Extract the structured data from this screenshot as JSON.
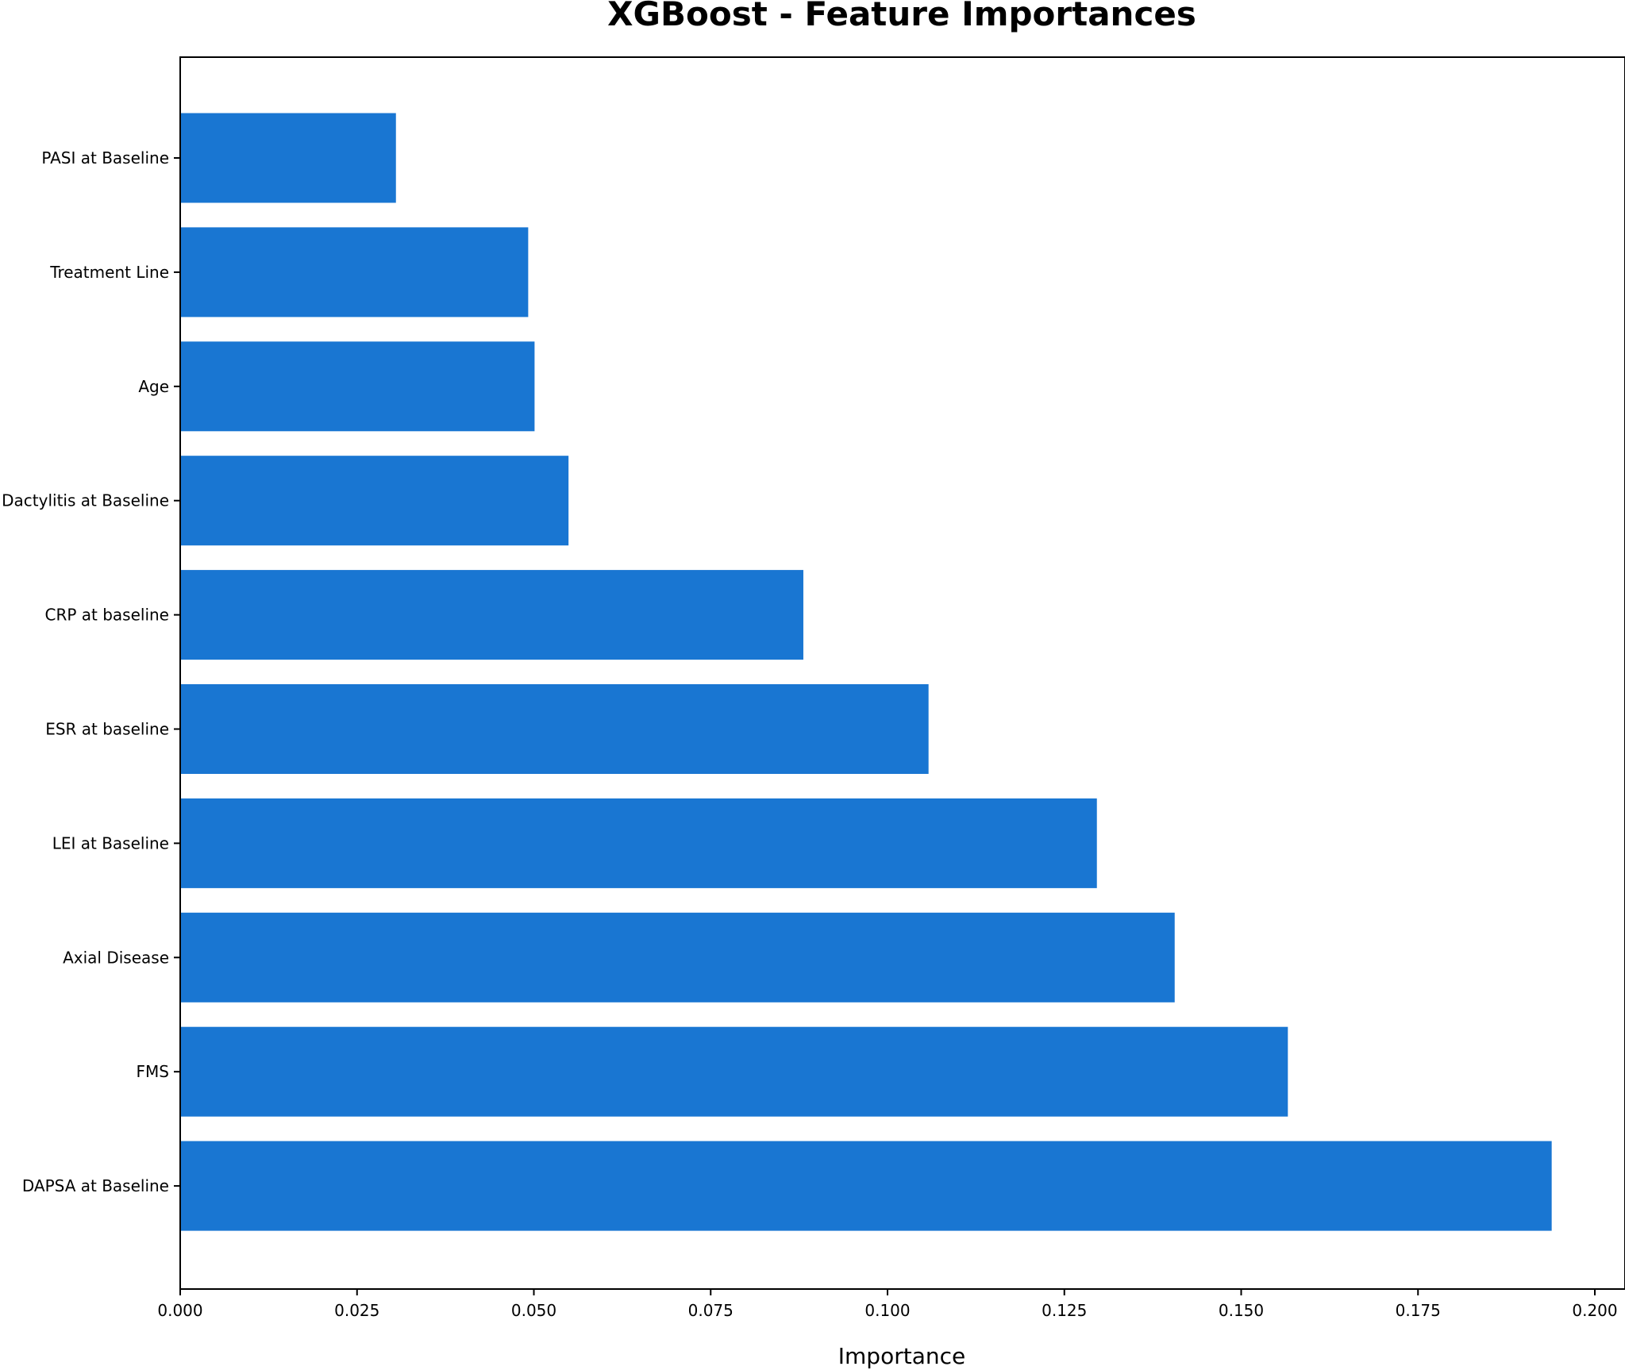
{
  "chart_data": {
    "type": "bar",
    "orientation": "horizontal",
    "title": "XGBoost - Feature Importances",
    "xlabel": "Importance",
    "ylabel": "",
    "xlim": [
      0,
      0.2
    ],
    "xticks": [
      "0.000",
      "0.025",
      "0.050",
      "0.075",
      "0.100",
      "0.125",
      "0.150",
      "0.175",
      "0.200"
    ],
    "grid": false,
    "categories": [
      "PASI at Baseline",
      "Treatment Line",
      "Age",
      "Dactylitis at Baseline",
      "CRP at baseline",
      "ESR at baseline",
      "LEI at Baseline",
      "Axial Disease",
      "FMS",
      "DAPSA at Baseline"
    ],
    "values": [
      0.0305,
      0.0492,
      0.0501,
      0.0549,
      0.0881,
      0.1058,
      0.1296,
      0.1406,
      0.1566,
      0.1939
    ],
    "colors": {
      "bar": "#1976d2",
      "axes": "#000000"
    }
  }
}
